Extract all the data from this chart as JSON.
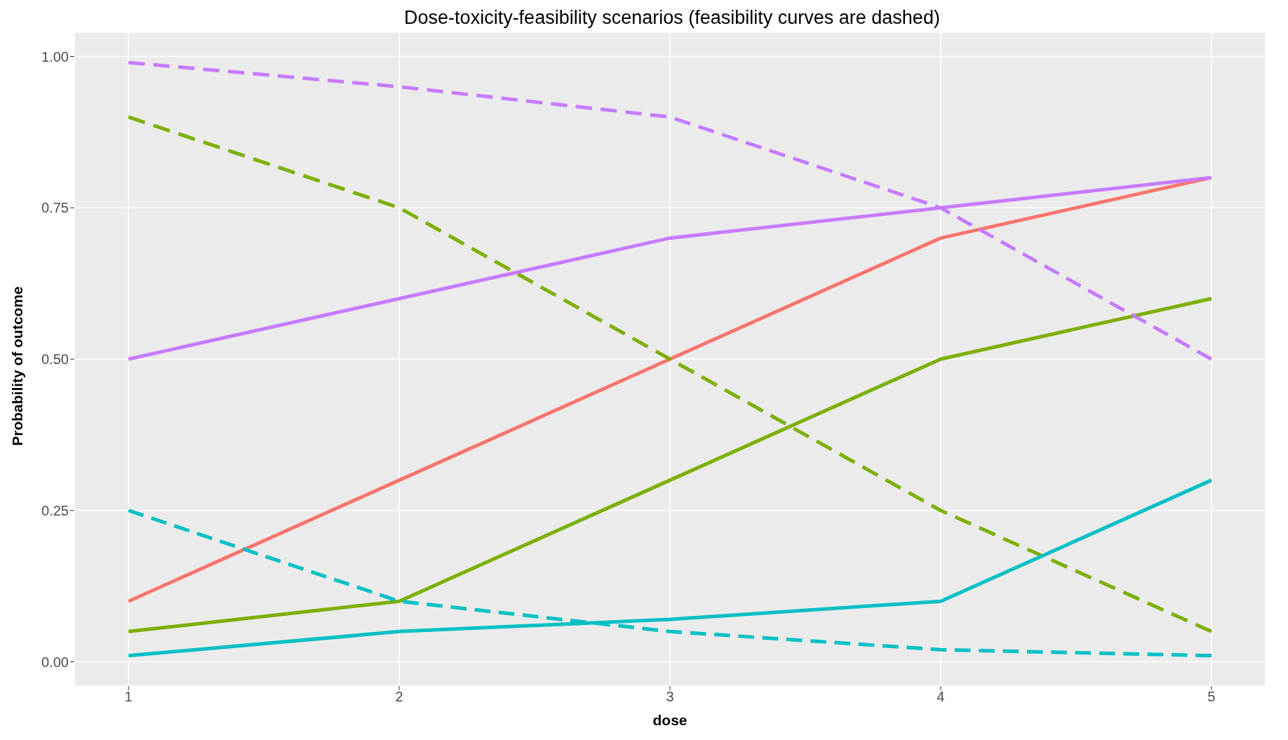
{
  "chart_data": {
    "type": "line",
    "title": "Dose-toxicity-feasibility scenarios (feasibility curves are dashed)",
    "xlabel": "dose",
    "ylabel": "Probability of outcome",
    "x": [
      1,
      2,
      3,
      4,
      5
    ],
    "series": [
      {
        "color": "#f8766d",
        "line_style": "solid",
        "values": [
          0.1,
          0.3,
          0.5,
          0.7,
          0.8
        ]
      },
      {
        "color": "#7cae00",
        "line_style": "solid",
        "values": [
          0.05,
          0.1,
          0.3,
          0.5,
          0.6
        ]
      },
      {
        "color": "#7cae00",
        "line_style": "dashed",
        "values": [
          0.9,
          0.75,
          0.5,
          0.25,
          0.05
        ]
      },
      {
        "color": "#00bfc4",
        "line_style": "solid",
        "values": [
          0.01,
          0.05,
          0.07,
          0.1,
          0.3
        ]
      },
      {
        "color": "#00bfc4",
        "line_style": "dashed",
        "values": [
          0.25,
          0.1,
          0.05,
          0.02,
          0.01
        ]
      },
      {
        "color": "#c77cff",
        "line_style": "solid",
        "values": [
          0.5,
          0.6,
          0.7,
          0.75,
          0.8
        ]
      },
      {
        "color": "#c77cff",
        "line_style": "dashed",
        "values": [
          0.99,
          0.95,
          0.9,
          0.75,
          0.5
        ]
      }
    ],
    "xlim": [
      0.8,
      5.2
    ],
    "xticks": [
      1,
      2,
      3,
      4,
      5
    ],
    "ylim": [
      -0.04,
      1.04
    ],
    "yticks": [
      {
        "value": 0,
        "label": "0.00"
      },
      {
        "value": 0.25,
        "label": "0.25"
      },
      {
        "value": 0.5,
        "label": "0.50"
      },
      {
        "value": 0.75,
        "label": "0.75"
      },
      {
        "value": 1,
        "label": "1.00"
      }
    ],
    "grid": true,
    "marker": "none"
  }
}
